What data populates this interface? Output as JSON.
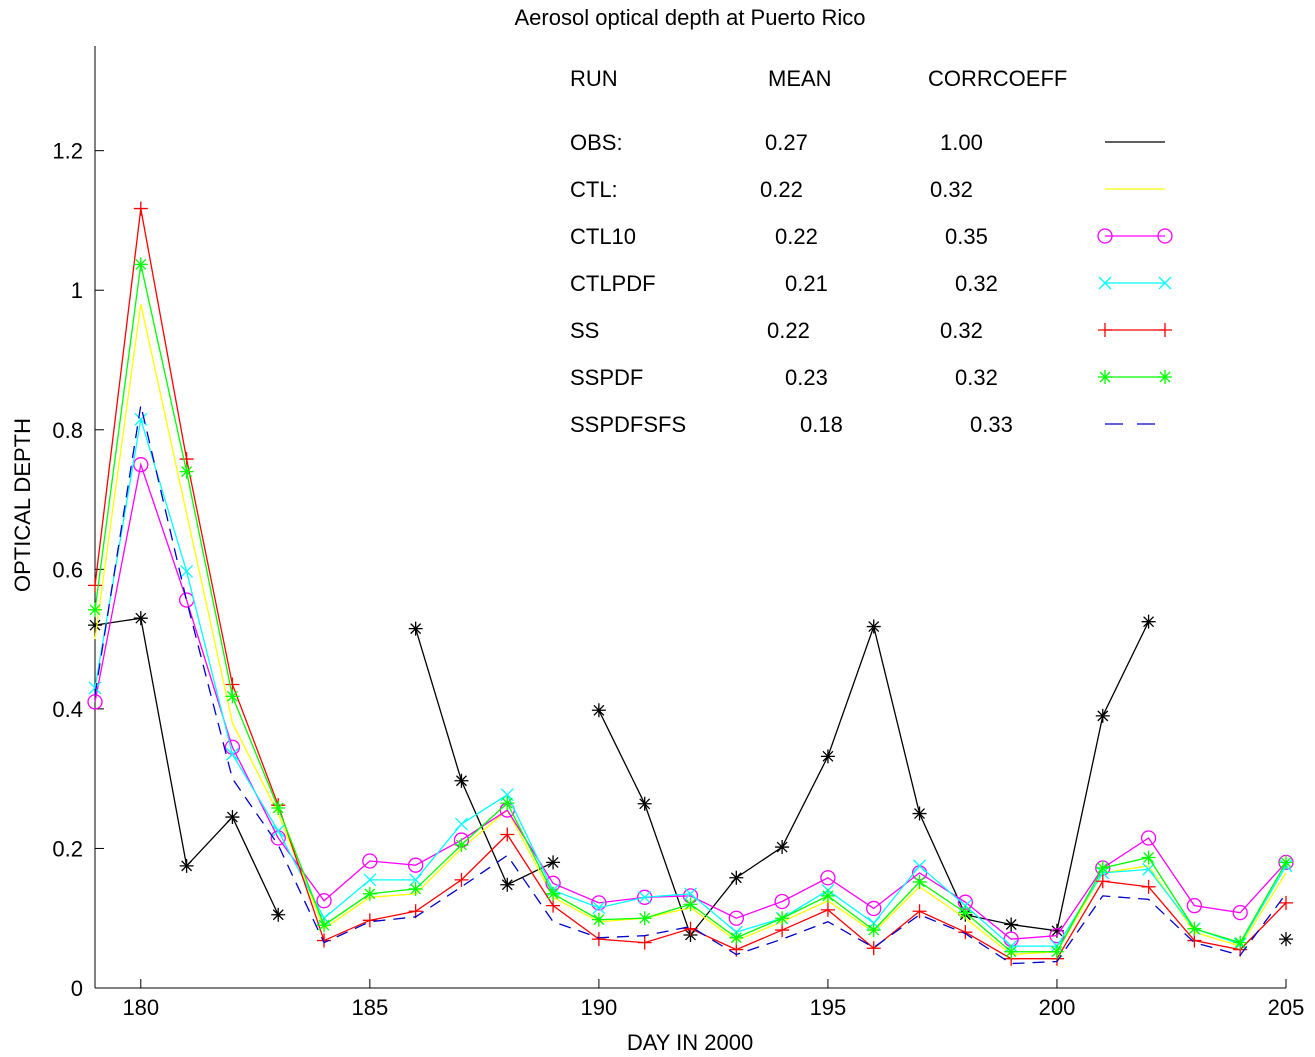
{
  "chart_data": {
    "type": "line",
    "title": "Aerosol optical depth at Puerto Rico",
    "xlabel": "DAY IN 2000",
    "ylabel": "OPTICAL DEPTH",
    "xlim": [
      179,
      205
    ],
    "ylim": [
      0,
      1.35
    ],
    "x_ticks": [
      180,
      185,
      190,
      195,
      200,
      205
    ],
    "y_ticks": [
      0,
      0.2,
      0.4,
      0.6,
      0.8,
      1,
      1.2
    ],
    "y_tick_labels": [
      "0",
      "0.2",
      "0.4",
      "0.6",
      "0.8",
      "1",
      "1.2"
    ],
    "grid": false,
    "legend_position": "top-right",
    "legend_headers": [
      "RUN",
      "MEAN",
      "CORRCOEFF"
    ],
    "series": [
      {
        "name": "OBS:",
        "mean": "0.27",
        "corr": "1.00",
        "color": "#000000",
        "marker": "asterisk",
        "line": "solid",
        "show_marker_in_legend": false,
        "segments": [
          {
            "x": [
              179,
              180,
              181,
              182,
              183
            ],
            "y": [
              0.52,
              0.53,
              0.175,
              0.245,
              0.105
            ]
          },
          {
            "x": [
              186,
              187,
              188,
              189
            ],
            "y": [
              0.515,
              0.297,
              0.148,
              0.18
            ]
          },
          {
            "x": [
              190,
              191,
              192,
              193,
              194,
              195,
              196,
              197,
              198,
              199,
              200,
              201,
              202
            ],
            "y": [
              0.398,
              0.264,
              0.076,
              0.158,
              0.202,
              0.332,
              0.518,
              0.25,
              0.105,
              0.091,
              0.082,
              0.39,
              0.525
            ]
          },
          {
            "x": [
              205
            ],
            "y": [
              0.07
            ]
          }
        ]
      },
      {
        "name": "CTL:",
        "mean": "0.22",
        "corr": "0.32",
        "color": "#ffff00",
        "marker": "none",
        "line": "solid",
        "show_marker_in_legend": false,
        "segments": [
          {
            "x": [
              179,
              180,
              181,
              182,
              183,
              184,
              185,
              186,
              187,
              188,
              189,
              190,
              191,
              192,
              193,
              194,
              195,
              196,
              197,
              198,
              199,
              200,
              201,
              202,
              203,
              204,
              205
            ],
            "y": [
              0.5,
              0.98,
              0.68,
              0.38,
              0.25,
              0.085,
              0.13,
              0.135,
              0.2,
              0.255,
              0.13,
              0.095,
              0.1,
              0.115,
              0.068,
              0.095,
              0.125,
              0.08,
              0.145,
              0.1,
              0.048,
              0.052,
              0.165,
              0.175,
              0.08,
              0.06,
              0.165
            ]
          }
        ]
      },
      {
        "name": "CTL10",
        "mean": "0.22",
        "corr": "0.35",
        "color": "#ff00ff",
        "marker": "circle",
        "line": "solid",
        "show_marker_in_legend": true,
        "segments": [
          {
            "x": [
              179,
              180,
              181,
              182,
              183,
              184,
              185,
              186,
              187,
              188,
              189,
              190,
              191,
              192,
              193,
              194,
              195,
              196,
              197,
              198,
              199,
              200,
              201,
              202,
              203,
              204,
              205
            ],
            "y": [
              0.41,
              0.75,
              0.556,
              0.345,
              0.215,
              0.125,
              0.182,
              0.176,
              0.212,
              0.255,
              0.15,
              0.122,
              0.13,
              0.132,
              0.1,
              0.124,
              0.158,
              0.114,
              0.165,
              0.123,
              0.07,
              0.075,
              0.172,
              0.215,
              0.118,
              0.108,
              0.18
            ]
          }
        ]
      },
      {
        "name": "CTLPDF",
        "mean": "0.21",
        "corr": "0.32",
        "color": "#00ffff",
        "marker": "x",
        "line": "solid",
        "show_marker_in_legend": true,
        "segments": [
          {
            "x": [
              179,
              180,
              181,
              182,
              183,
              184,
              185,
              186,
              187,
              188,
              189,
              190,
              191,
              192,
              193,
              194,
              195,
              196,
              197,
              198,
              199,
              200,
              201,
              202,
              203,
              204,
              205
            ],
            "y": [
              0.43,
              0.815,
              0.597,
              0.335,
              0.225,
              0.1,
              0.155,
              0.155,
              0.235,
              0.277,
              0.14,
              0.115,
              0.13,
              0.135,
              0.08,
              0.1,
              0.14,
              0.093,
              0.175,
              0.118,
              0.06,
              0.06,
              0.165,
              0.17,
              0.085,
              0.063,
              0.175
            ]
          }
        ]
      },
      {
        "name": "SS",
        "mean": "0.22",
        "corr": "0.32",
        "color": "#ff0000",
        "marker": "plus",
        "line": "solid",
        "show_marker_in_legend": true,
        "segments": [
          {
            "x": [
              179,
              180,
              181,
              182,
              183,
              184,
              185,
              186,
              187,
              188,
              189,
              190,
              191,
              192,
              193,
              194,
              195,
              196,
              197,
              198,
              199,
              200,
              201,
              202,
              203,
              204,
              205
            ],
            "y": [
              0.577,
              1.117,
              0.758,
              0.435,
              0.262,
              0.068,
              0.097,
              0.11,
              0.155,
              0.22,
              0.118,
              0.07,
              0.065,
              0.085,
              0.055,
              0.083,
              0.112,
              0.057,
              0.11,
              0.08,
              0.042,
              0.042,
              0.153,
              0.145,
              0.068,
              0.055,
              0.122
            ]
          }
        ]
      },
      {
        "name": "SSPDF",
        "mean": "0.23",
        "corr": "0.32",
        "color": "#00ff00",
        "marker": "asterisk",
        "line": "solid",
        "show_marker_in_legend": true,
        "segments": [
          {
            "x": [
              179,
              180,
              181,
              182,
              183,
              184,
              185,
              186,
              187,
              188,
              189,
              190,
              191,
              192,
              193,
              194,
              195,
              196,
              197,
              198,
              199,
              200,
              201,
              202,
              203,
              204,
              205
            ],
            "y": [
              0.542,
              1.037,
              0.74,
              0.418,
              0.258,
              0.09,
              0.135,
              0.142,
              0.205,
              0.265,
              0.135,
              0.098,
              0.1,
              0.12,
              0.072,
              0.1,
              0.132,
              0.083,
              0.152,
              0.108,
              0.052,
              0.052,
              0.172,
              0.187,
              0.085,
              0.065,
              0.18
            ]
          }
        ]
      },
      {
        "name": "SSPDFSFS",
        "mean": "0.18",
        "corr": "0.33",
        "color": "#0000cc",
        "marker": "none",
        "line": "dashed",
        "show_marker_in_legend": false,
        "segments": [
          {
            "x": [
              179,
              180,
              181,
              182,
              183,
              184,
              185,
              186,
              187,
              188,
              189,
              190,
              191,
              192,
              193,
              194,
              195,
              196,
              197,
              198,
              199,
              200,
              201,
              202,
              203,
              204,
              205
            ],
            "y": [
              0.42,
              0.835,
              0.555,
              0.3,
              0.205,
              0.065,
              0.095,
              0.102,
              0.145,
              0.19,
              0.095,
              0.072,
              0.075,
              0.088,
              0.048,
              0.07,
              0.095,
              0.058,
              0.105,
              0.078,
              0.035,
              0.038,
              0.132,
              0.127,
              0.065,
              0.047,
              0.135
            ]
          }
        ]
      }
    ]
  }
}
